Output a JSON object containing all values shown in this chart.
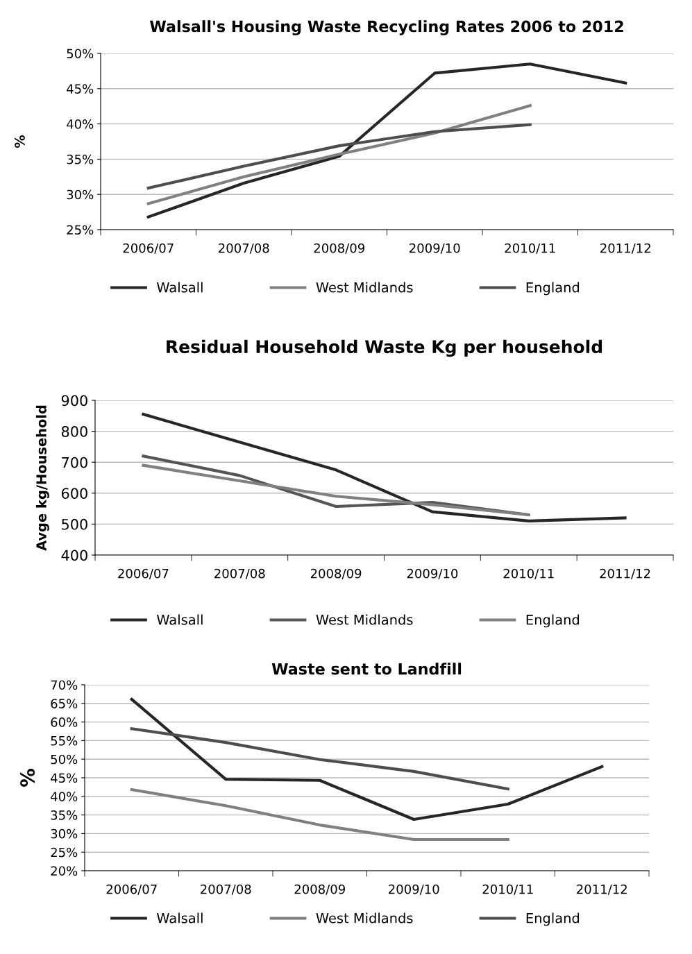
{
  "chart_data": [
    {
      "type": "line",
      "title": "Walsall's Housing Waste Recycling Rates 2006 to 2012",
      "ylabel": "%",
      "categories": [
        "2006/07",
        "2007/08",
        "2008/09",
        "2009/10",
        "2010/11",
        "2011/12"
      ],
      "series": [
        {
          "name": "Walsall",
          "color": "#262626",
          "values": [
            26.8,
            31.6,
            35.4,
            47.2,
            48.5,
            45.8
          ]
        },
        {
          "name": "West Midlands",
          "color": "#808080",
          "values": [
            28.7,
            32.5,
            35.7,
            38.7,
            42.6,
            null
          ]
        },
        {
          "name": "England",
          "color": "#4d4d4d",
          "values": [
            30.9,
            34.0,
            36.9,
            38.9,
            39.9,
            null
          ]
        }
      ],
      "ylim": [
        25,
        50
      ],
      "yticks": [
        {
          "value": 25,
          "label": "25%"
        },
        {
          "value": 30,
          "label": "30%"
        },
        {
          "value": 35,
          "label": "35%"
        },
        {
          "value": 40,
          "label": "40%"
        },
        {
          "value": 45,
          "label": "45%"
        },
        {
          "value": 50,
          "label": "50%"
        }
      ],
      "grid": "y",
      "legend": "bottom",
      "marker": "none",
      "line_style": "solid"
    },
    {
      "type": "line",
      "title": "Residual Household Waste Kg per household",
      "ylabel": "Avge kg/Household",
      "categories": [
        "2006/07",
        "2007/08",
        "2008/09",
        "2009/10",
        "2010/11",
        "2011/12"
      ],
      "series": [
        {
          "name": "Walsall",
          "color": "#262626",
          "values": [
            855,
            765,
            675,
            540,
            510,
            520
          ]
        },
        {
          "name": "West Midlands",
          "color": "#555555",
          "values": [
            720,
            657,
            557,
            570,
            530,
            null
          ]
        },
        {
          "name": "England",
          "color": "#808080",
          "values": [
            690,
            640,
            590,
            563,
            530,
            null
          ]
        }
      ],
      "ylim": [
        400,
        900
      ],
      "yticks": [
        400,
        500,
        600,
        700,
        800,
        900
      ],
      "grid": "y",
      "legend": "bottom",
      "marker": "none",
      "line_style": "solid"
    },
    {
      "type": "line",
      "title": "Waste sent to Landfill",
      "ylabel": "%",
      "categories": [
        "2006/07",
        "2007/08",
        "2008/09",
        "2009/10",
        "2010/11",
        "2011/12"
      ],
      "series": [
        {
          "name": "Walsall",
          "color": "#262626",
          "values": [
            66.1,
            44.6,
            44.3,
            33.8,
            37.9,
            48.0
          ]
        },
        {
          "name": "West Midlands",
          "color": "#808080",
          "values": [
            41.8,
            37.5,
            32.3,
            28.4,
            28.4,
            null
          ]
        },
        {
          "name": "England",
          "color": "#4d4d4d",
          "values": [
            58.2,
            54.5,
            49.9,
            46.7,
            42.0,
            null
          ]
        }
      ],
      "ylim": [
        20,
        70
      ],
      "yticks": [
        {
          "value": 20,
          "label": "20%"
        },
        {
          "value": 25,
          "label": "25%"
        },
        {
          "value": 30,
          "label": "30%"
        },
        {
          "value": 35,
          "label": "35%"
        },
        {
          "value": 40,
          "label": "40%"
        },
        {
          "value": 45,
          "label": "45%"
        },
        {
          "value": 50,
          "label": "50%"
        },
        {
          "value": 55,
          "label": "55%"
        },
        {
          "value": 60,
          "label": "60%"
        },
        {
          "value": 65,
          "label": "65%"
        },
        {
          "value": 70,
          "label": "70%"
        }
      ],
      "grid": "y",
      "legend": "bottom",
      "marker": "none",
      "line_style": "solid"
    }
  ]
}
